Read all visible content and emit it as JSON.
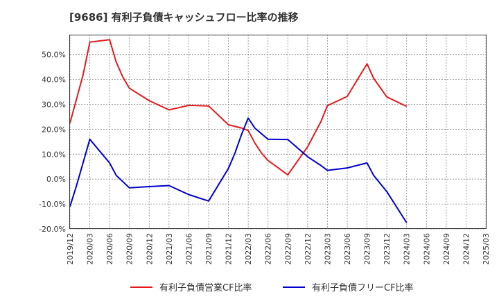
{
  "chart_data": {
    "type": "line",
    "title": "[9686]  有利子負債キャッシュフロー比率の推移",
    "xlabel": "",
    "ylabel": "",
    "ylim": [
      -20,
      58
    ],
    "yticks": [
      -20,
      -10,
      0,
      10,
      20,
      30,
      40,
      50
    ],
    "ytick_labels": [
      "-20.0%",
      "-10.0%",
      "0.0%",
      "10.0%",
      "20.0%",
      "30.0%",
      "40.0%",
      "50.0%"
    ],
    "xtick_labels": [
      "2019/12",
      "2020/03",
      "2020/06",
      "2020/09",
      "2020/12",
      "2021/03",
      "2021/06",
      "2021/09",
      "2021/12",
      "2022/03",
      "2022/06",
      "2022/09",
      "2022/12",
      "2023/03",
      "2023/06",
      "2023/09",
      "2023/12",
      "2024/03",
      "2024/06",
      "2024/09",
      "2024/12",
      "2025/03"
    ],
    "grid": true,
    "legend_position": "bottom",
    "series": [
      {
        "name": "有利子負債営業CF比率",
        "color": "#e31a1c",
        "values": [
          [
            "2019/12",
            22.5
          ],
          [
            "2020/02",
            42
          ],
          [
            "2020/03",
            55
          ],
          [
            "2020/06",
            56
          ],
          [
            "2020/07",
            47
          ],
          [
            "2020/08",
            41
          ],
          [
            "2020/09",
            36.5
          ],
          [
            "2020/12",
            31.5
          ],
          [
            "2021/03",
            27.8
          ],
          [
            "2021/06",
            29.6
          ],
          [
            "2021/09",
            29.4
          ],
          [
            "2021/12",
            21.8
          ],
          [
            "2022/02",
            20.5
          ],
          [
            "2022/03",
            19.5
          ],
          [
            "2022/04",
            14.5
          ],
          [
            "2022/05",
            10.5
          ],
          [
            "2022/06",
            7.5
          ],
          [
            "2022/09",
            1.7
          ],
          [
            "2022/12",
            13
          ],
          [
            "2023/02",
            23
          ],
          [
            "2023/03",
            29.5
          ],
          [
            "2023/06",
            33.2
          ],
          [
            "2023/09",
            46.3
          ],
          [
            "2023/10",
            40.5
          ],
          [
            "2023/12",
            33
          ],
          [
            "2024/03",
            29.2
          ]
        ]
      },
      {
        "name": "有利子負債フリーCF比率",
        "color": "#0000cc",
        "values": [
          [
            "2019/12",
            -11
          ],
          [
            "2020/01",
            -2.5
          ],
          [
            "2020/03",
            16
          ],
          [
            "2020/06",
            6.5
          ],
          [
            "2020/07",
            1.5
          ],
          [
            "2020/09",
            -3.5
          ],
          [
            "2020/12",
            -3
          ],
          [
            "2021/03",
            -2.6
          ],
          [
            "2021/06",
            -6.2
          ],
          [
            "2021/09",
            -8.8
          ],
          [
            "2021/12",
            4.3
          ],
          [
            "2022/01",
            10.5
          ],
          [
            "2022/02",
            18
          ],
          [
            "2022/03",
            24.5
          ],
          [
            "2022/04",
            20.5
          ],
          [
            "2022/06",
            16
          ],
          [
            "2022/09",
            15.9
          ],
          [
            "2022/12",
            9
          ],
          [
            "2023/02",
            5.5
          ],
          [
            "2023/03",
            3.5
          ],
          [
            "2023/06",
            4.5
          ],
          [
            "2023/09",
            6.5
          ],
          [
            "2023/10",
            1.5
          ],
          [
            "2023/12",
            -5
          ],
          [
            "2024/03",
            -17.5
          ]
        ]
      }
    ]
  }
}
